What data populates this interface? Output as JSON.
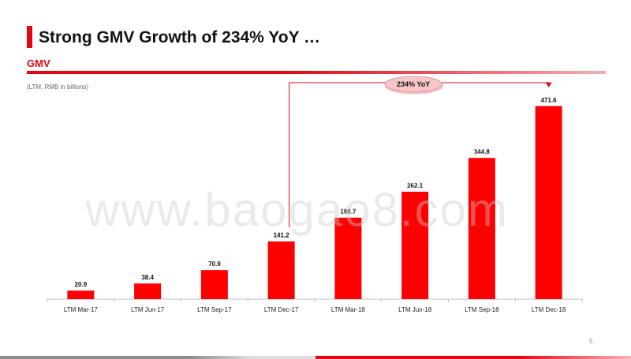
{
  "title": "Strong GMV Growth of 234% YoY …",
  "section_label": "GMV",
  "unit_note": "(LTM, RMB in billions)",
  "watermark": "www.baogao8.com",
  "page_number": "5",
  "colors": {
    "accent": "#e30613",
    "bar": "#ff0000",
    "callout_fill": "#f7c6c9"
  },
  "chart_data": {
    "type": "bar",
    "categories": [
      "LTM Mar-17",
      "LTM Jun-17",
      "LTM Sep-17",
      "LTM Dec-17",
      "LTM Mar-18",
      "LTM Jun-18",
      "LTM Sep-18",
      "LTM Dec-18"
    ],
    "values": [
      20.9,
      38.4,
      70.9,
      141.2,
      198.7,
      262.1,
      344.8,
      471.6
    ],
    "data_labels": [
      "20.9",
      "38.4",
      "70.9",
      "141.2",
      "198.7",
      "262.1",
      "344.8",
      "471.6"
    ],
    "ylim": [
      0,
      500
    ],
    "grid": false,
    "annotation": {
      "text": "234% YoY",
      "from": "LTM Dec-17",
      "to": "LTM Dec-18"
    }
  }
}
